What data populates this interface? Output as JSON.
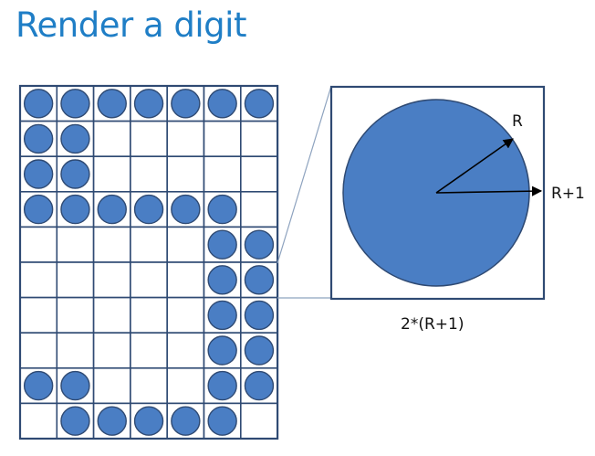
{
  "title": "Render a digit",
  "grid": {
    "cols": 7,
    "rows": 10,
    "pattern": [
      "1111111",
      "11.....",
      "11.....",
      "111111.",
      ".....11",
      ".....11",
      ".....11",
      ".....11",
      "11...11",
      ".11111."
    ]
  },
  "zoom": {
    "radius_label": "R",
    "outer_label": "R+1",
    "size_label": "2*(R+1)"
  },
  "colors": {
    "title": "#1f7ec6",
    "grid_line": "#2f4a73",
    "dot_fill": "#4a7ec4",
    "dot_stroke": "#2f4a73",
    "zoom_line": "#8ea3bf",
    "arrow": "#000000"
  }
}
